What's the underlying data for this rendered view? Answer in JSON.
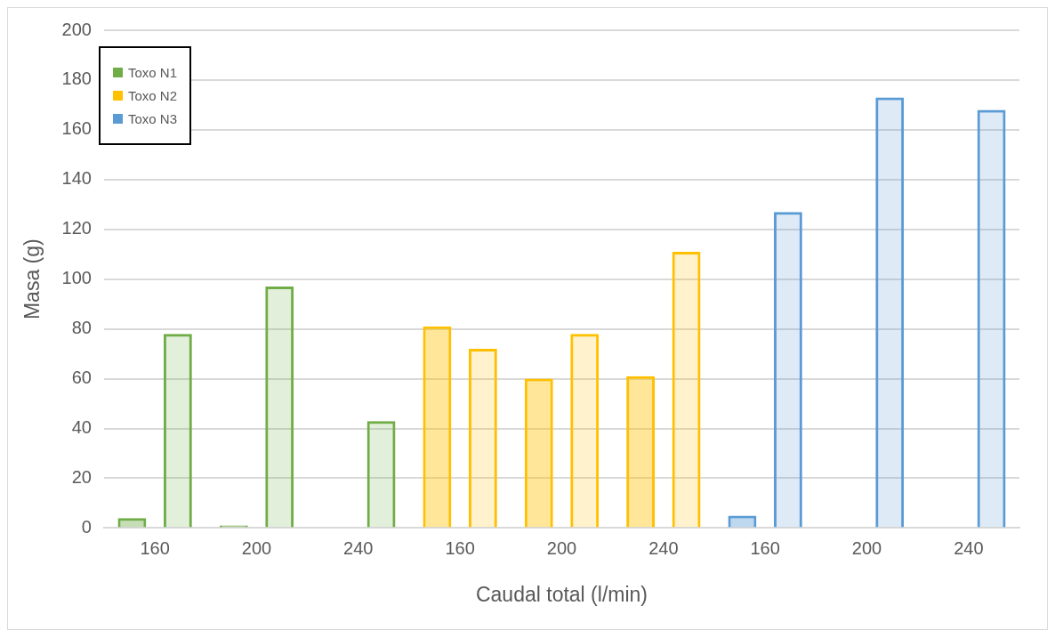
{
  "chart_data": {
    "type": "bar",
    "xlabel": "Caudal total (l/min)",
    "ylabel": "Masa (g)",
    "categories": [
      "160",
      "200",
      "240",
      "160",
      "200",
      "240",
      "160",
      "200",
      "240"
    ],
    "series": [
      {
        "color": "#70ad47",
        "values": [
          4,
          1,
          0,
          null,
          null,
          null,
          null,
          null,
          null
        ]
      },
      {
        "name": "Toxo N1",
        "color": "#70ad47",
        "values": [
          78,
          97,
          43,
          null,
          null,
          null,
          null,
          null,
          null
        ]
      },
      {
        "color": "#ffc000",
        "values": [
          null,
          null,
          null,
          81,
          60,
          61,
          null,
          null,
          null
        ]
      },
      {
        "name": "Toxo N2",
        "color": "#ffc000",
        "values": [
          null,
          null,
          null,
          72,
          78,
          111,
          null,
          null,
          null
        ]
      },
      {
        "color": "#5b9bd5",
        "values": [
          null,
          null,
          null,
          null,
          null,
          null,
          5,
          0,
          0
        ]
      },
      {
        "name": "Toxo N3",
        "color": "#5b9bd5",
        "values": [
          null,
          null,
          null,
          null,
          null,
          null,
          127,
          173,
          168
        ]
      }
    ],
    "ylim": [
      0,
      200
    ],
    "yticks": [
      0,
      20,
      40,
      60,
      80,
      100,
      120,
      140,
      160,
      180,
      200
    ],
    "grid": "y",
    "legend": "top left"
  }
}
